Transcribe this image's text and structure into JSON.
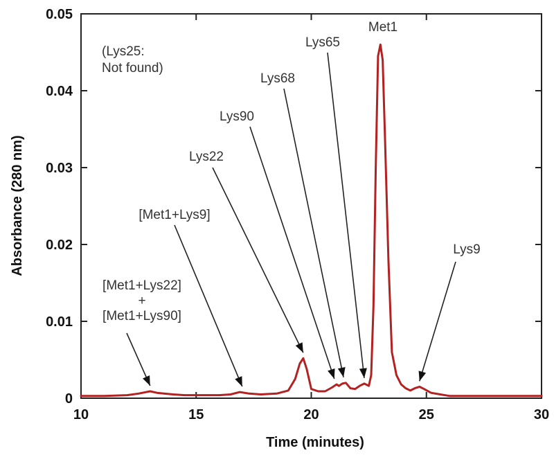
{
  "chart_data": {
    "type": "line",
    "title": "",
    "xlabel": "Time (minutes)",
    "ylabel": "Absorbance (280 nm)",
    "xlim": [
      10,
      30
    ],
    "ylim": [
      0,
      0.05
    ],
    "x_ticks": [
      10,
      15,
      20,
      25,
      30
    ],
    "x_tick_labels": [
      "10",
      "15",
      "20",
      "25",
      "30"
    ],
    "y_ticks": [
      0,
      0.01,
      0.02,
      0.03,
      0.04,
      0.05
    ],
    "y_tick_labels": [
      "0",
      "0.01",
      "0.02",
      "0.03",
      "0.04",
      "0.05"
    ],
    "grid": false,
    "line_color": "#b22222",
    "series": [
      {
        "x": [
          10.0,
          11.0,
          12.0,
          12.5,
          13.0,
          13.3,
          13.6,
          14.0,
          14.5,
          15.0,
          15.5,
          16.0,
          16.5,
          16.9,
          17.3,
          17.8,
          18.5,
          19.0,
          19.3,
          19.5,
          19.65,
          19.8,
          20.0,
          20.3,
          20.6,
          20.9,
          21.1,
          21.2,
          21.35,
          21.5,
          21.7,
          21.9,
          22.1,
          22.3,
          22.5,
          22.6,
          22.7,
          22.8,
          22.9,
          23.0,
          23.1,
          23.2,
          23.35,
          23.5,
          23.7,
          23.9,
          24.1,
          24.3,
          24.5,
          24.7,
          24.9,
          25.2,
          25.6,
          26.0,
          27.0,
          28.0,
          29.0,
          30.0
        ],
        "y": [
          0.0003,
          0.0003,
          0.0004,
          0.0006,
          0.0009,
          0.0007,
          0.0006,
          0.0005,
          0.0004,
          0.0004,
          0.0004,
          0.0004,
          0.0005,
          0.0008,
          0.0006,
          0.0005,
          0.0006,
          0.001,
          0.0025,
          0.0045,
          0.0052,
          0.0038,
          0.0012,
          0.0009,
          0.0009,
          0.0014,
          0.0018,
          0.0016,
          0.0019,
          0.002,
          0.0013,
          0.0012,
          0.0016,
          0.0019,
          0.0016,
          0.003,
          0.012,
          0.03,
          0.0445,
          0.046,
          0.044,
          0.034,
          0.018,
          0.006,
          0.003,
          0.0018,
          0.0013,
          0.001,
          0.0013,
          0.0015,
          0.0012,
          0.0007,
          0.0005,
          0.0003,
          0.0003,
          0.0003,
          0.0003,
          0.0003
        ]
      }
    ],
    "annotations": [
      {
        "id": "met1-lys22-lys90",
        "lines": [
          "[Met1+Lys22]",
          "+",
          "[Met1+Lys90]"
        ],
        "points_to": [
          13.0,
          0.0009
        ]
      },
      {
        "id": "met1-lys9",
        "lines": [
          "[Met1+Lys9]"
        ],
        "points_to": [
          17.0,
          0.0008
        ]
      },
      {
        "id": "lys22",
        "lines": [
          "Lys22"
        ],
        "points_to": [
          19.65,
          0.0052
        ]
      },
      {
        "id": "lys90",
        "lines": [
          "Lys90"
        ],
        "points_to": [
          21.0,
          0.0018
        ]
      },
      {
        "id": "lys68",
        "lines": [
          "Lys68"
        ],
        "points_to": [
          21.4,
          0.002
        ]
      },
      {
        "id": "lys65",
        "lines": [
          "Lys65"
        ],
        "points_to": [
          22.3,
          0.0019
        ]
      },
      {
        "id": "met1",
        "lines": [
          "Met1"
        ],
        "points_to": null
      },
      {
        "id": "lys9",
        "lines": [
          "Lys9"
        ],
        "points_to": [
          24.7,
          0.0015
        ]
      }
    ],
    "note_lines": [
      "(Lys25:",
      "Not found)"
    ]
  }
}
